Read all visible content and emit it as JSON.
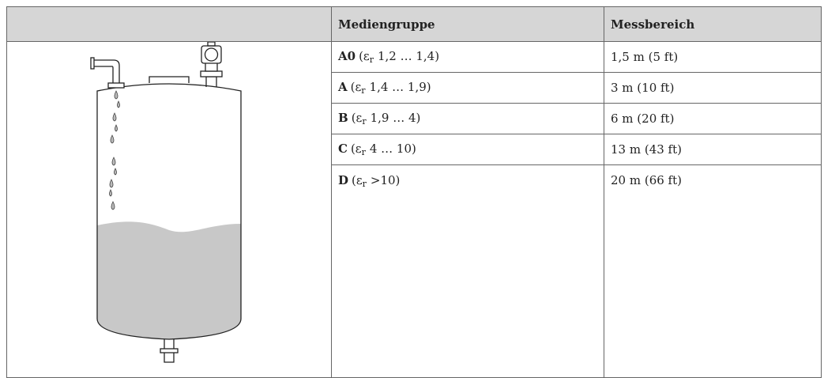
{
  "table": {
    "header": [
      "Mediengruppe",
      "Messbereich"
    ],
    "rows": [
      {
        "code": "A0",
        "prefix": "(ε",
        "subscript": "r",
        "suffix": "1,2 … 1,4)",
        "range": "1,5 m (5 ft)"
      },
      {
        "code": "A",
        "prefix": "(ε",
        "subscript": "r",
        "suffix": "1,4 … 1,9)",
        "range": "3 m (10 ft)"
      },
      {
        "code": "B",
        "prefix": "(ε",
        "subscript": "r",
        "suffix": "1,9 … 4)",
        "range": "6 m (20 ft)"
      },
      {
        "code": "C",
        "prefix": "(ε",
        "subscript": "r",
        "suffix": "4 … 10)",
        "range": "13 m (43 ft)"
      },
      {
        "code": "D",
        "prefix": "(ε",
        "subscript": "r",
        "suffix": ">10)",
        "range": "20 m (66 ft)"
      }
    ]
  }
}
